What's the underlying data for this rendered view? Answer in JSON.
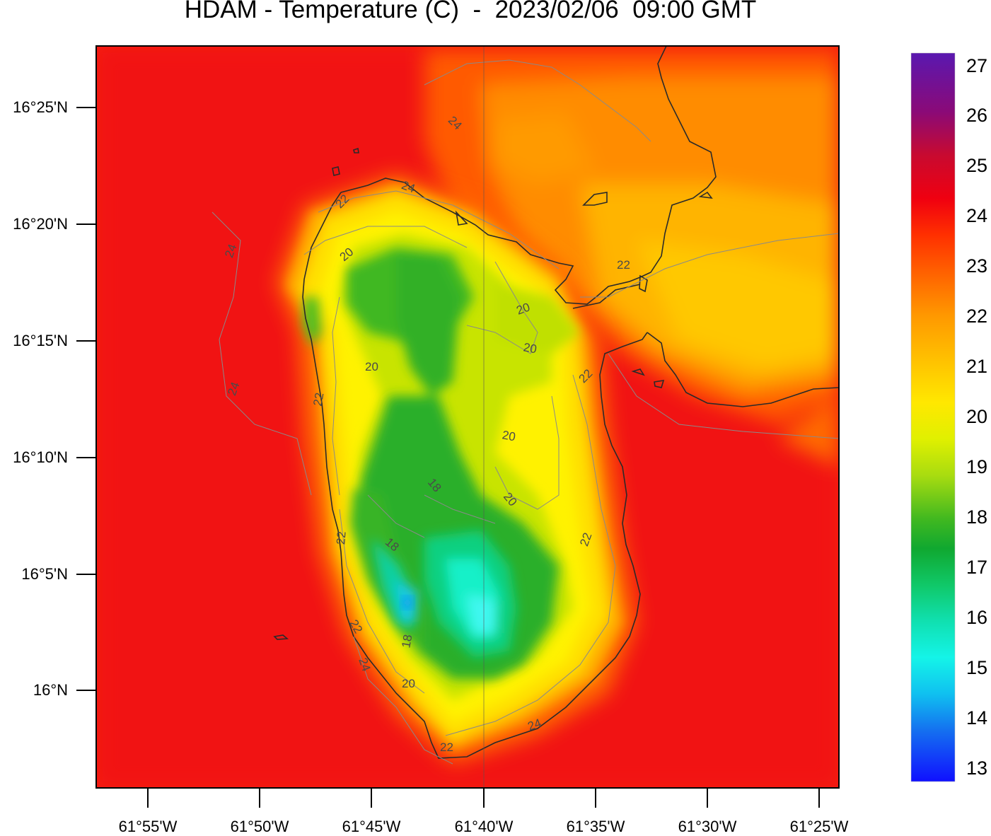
{
  "title": "HDAM - Temperature (C)  -  2023/02/06  09:00 GMT",
  "y_axis_ticks": [
    "16°25'N",
    "16°20'N",
    "16°15'N",
    "16°10'N",
    "16°5'N",
    "16°N"
  ],
  "x_axis_ticks": [
    "61°55'W",
    "61°50'W",
    "61°45'W",
    "61°40'W",
    "61°35'W",
    "61°30'W",
    "61°25'W"
  ],
  "colorbar": {
    "labels": [
      "27",
      "26",
      "25",
      "24",
      "23",
      "22",
      "21",
      "20",
      "19",
      "18",
      "17",
      "16",
      "15",
      "14",
      "13"
    ],
    "colors_top_to_bottom": [
      "#5a18b0",
      "#8a0a78",
      "#b00a40",
      "#dc0020",
      "#f20010",
      "#ff2a00",
      "#ff5000",
      "#ff7800",
      "#ffa000",
      "#ffc800",
      "#ffe800",
      "#e4f000",
      "#a8dc10",
      "#50c020",
      "#14b030",
      "#10c060",
      "#10dca0",
      "#14f0dc",
      "#10c8f0",
      "#1478f0",
      "#1428ff"
    ],
    "min": 13,
    "max": 27
  },
  "contour_labels": [
    "24",
    "24",
    "24",
    "24",
    "22",
    "22",
    "22",
    "22",
    "22",
    "22",
    "22",
    "20",
    "20",
    "20",
    "20",
    "20",
    "20",
    "20",
    "18",
    "18",
    "18",
    "24",
    "24",
    "22"
  ],
  "colors": {
    "background_warm": "#f51a10",
    "coast": "#2a2a2a",
    "contour": "#888888"
  }
}
